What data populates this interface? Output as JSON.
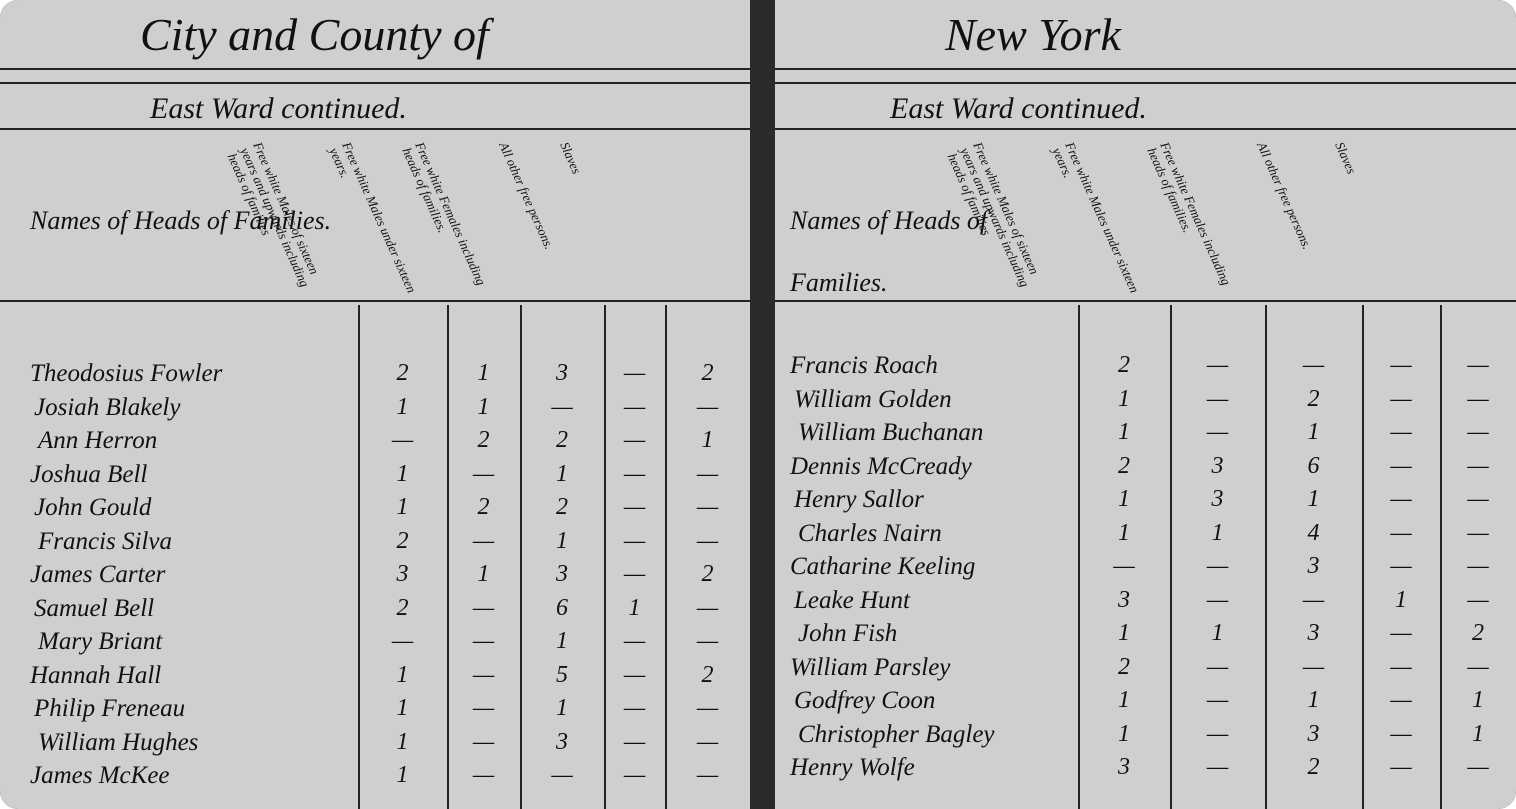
{
  "pages": [
    {
      "title": "City and County of",
      "subtitle": "East Ward continued.",
      "columns": [
        "Names of Heads of Families.",
        "Free white Males of sixteen years and upwards including heads of families",
        "Free white Males under sixteen years.",
        "Free white Females including heads of families.",
        "All other free persons.",
        "Slaves"
      ],
      "rows": [
        [
          "Theodosius Fowler",
          "2",
          "1",
          "3",
          "—",
          "2"
        ],
        [
          "Josiah Blakely",
          "1",
          "1",
          "—",
          "—",
          "—"
        ],
        [
          "Ann Herron",
          "—",
          "2",
          "2",
          "—",
          "1"
        ],
        [
          "Joshua Bell",
          "1",
          "—",
          "1",
          "—",
          "—"
        ],
        [
          "John Gould",
          "1",
          "2",
          "2",
          "—",
          "—"
        ],
        [
          "Francis Silva",
          "2",
          "—",
          "1",
          "—",
          "—"
        ],
        [
          "James Carter",
          "3",
          "1",
          "3",
          "—",
          "2"
        ],
        [
          "Samuel Bell",
          "2",
          "—",
          "6",
          "1",
          "—"
        ],
        [
          "Mary Briant",
          "—",
          "—",
          "1",
          "—",
          "—"
        ],
        [
          "Hannah Hall",
          "1",
          "—",
          "5",
          "—",
          "2"
        ],
        [
          "Philip Freneau",
          "1",
          "—",
          "1",
          "—",
          "—"
        ],
        [
          "William Hughes",
          "1",
          "—",
          "3",
          "—",
          "—"
        ],
        [
          "James McKee",
          "1",
          "—",
          "—",
          "—",
          "—"
        ]
      ]
    },
    {
      "title": "New York",
      "subtitle": "East Ward continued.",
      "columns": [
        "Names of Heads of Families.",
        "Free white Males of sixteen years and upwards including heads of families",
        "Free white Males under sixteen years.",
        "Free white Females including heads of families.",
        "All other free persons.",
        "Slaves"
      ],
      "rows": [
        [
          "Francis Roach",
          "2",
          "—",
          "—",
          "—",
          "—"
        ],
        [
          "William Golden",
          "1",
          "—",
          "2",
          "—",
          "—"
        ],
        [
          "William Buchanan",
          "1",
          "—",
          "1",
          "—",
          "—"
        ],
        [
          "Dennis McCready",
          "2",
          "3",
          "6",
          "—",
          "—"
        ],
        [
          "Henry Sallor",
          "1",
          "3",
          "1",
          "—",
          "—"
        ],
        [
          "Charles Nairn",
          "1",
          "1",
          "4",
          "—",
          "—"
        ],
        [
          "Catharine Keeling",
          "—",
          "—",
          "3",
          "—",
          "—"
        ],
        [
          "Leake Hunt",
          "3",
          "—",
          "—",
          "1",
          "—"
        ],
        [
          "John Fish",
          "1",
          "1",
          "3",
          "—",
          "2"
        ],
        [
          "William Parsley",
          "2",
          "—",
          "—",
          "—",
          "—"
        ],
        [
          "Godfrey Coon",
          "1",
          "—",
          "1",
          "—",
          "1"
        ],
        [
          "Christopher Bagley",
          "1",
          "—",
          "3",
          "—",
          "1"
        ],
        [
          "Henry Wolfe",
          "3",
          "—",
          "2",
          "—",
          "—"
        ]
      ]
    }
  ]
}
